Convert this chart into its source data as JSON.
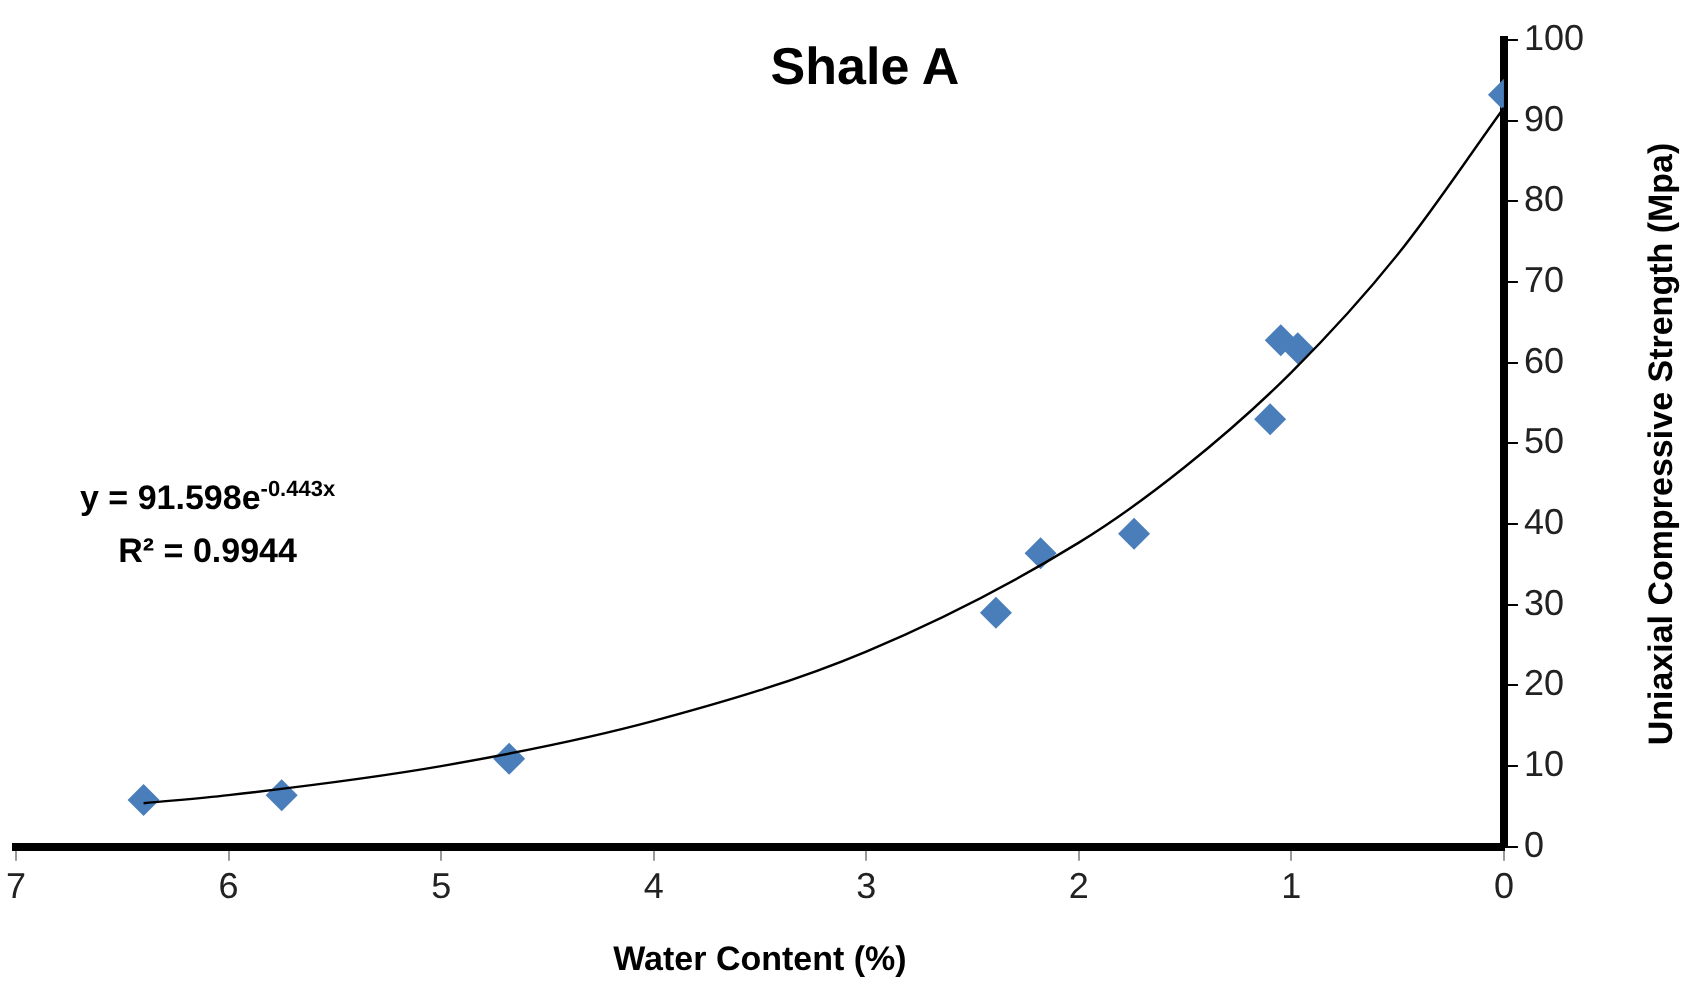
{
  "chart_data": {
    "type": "scatter",
    "title": "Shale A",
    "xlabel": "Water Content (%)",
    "ylabel": "Uniaxial Compressive Strength (Mpa)",
    "xlim": [
      7,
      0
    ],
    "xticks": [
      7,
      6,
      5,
      4,
      3,
      2,
      1,
      0
    ],
    "ylim": [
      0,
      100
    ],
    "yticks": [
      0,
      10,
      20,
      30,
      40,
      50,
      60,
      70,
      80,
      90,
      100
    ],
    "grid": false,
    "legend": false,
    "marker": "diamond",
    "annotations": [
      "y = 91.598e$^{-0.443x}$",
      "R² = 0.9944"
    ],
    "series": [
      {
        "color": "#4a7ebb",
        "x": [
          6.4,
          5.75,
          4.68,
          2.39,
          2.18,
          1.74,
          1.1,
          1.05,
          0.97,
          0
        ],
        "values": [
          5.8,
          6.4,
          10.9,
          29,
          36.4,
          38.8,
          53,
          62.8,
          61.8,
          93.2
        ]
      },
      {
        "type": "line",
        "color": "#000000",
        "marker": "none",
        "x": [
          6.4,
          6,
          5,
          4,
          3,
          2,
          1.5,
          1,
          0.5,
          0
        ],
        "values": [
          5.4,
          6.4,
          10,
          15.6,
          24.2,
          37.7,
          47.1,
          58.8,
          73.4,
          91.6
        ]
      }
    ]
  }
}
